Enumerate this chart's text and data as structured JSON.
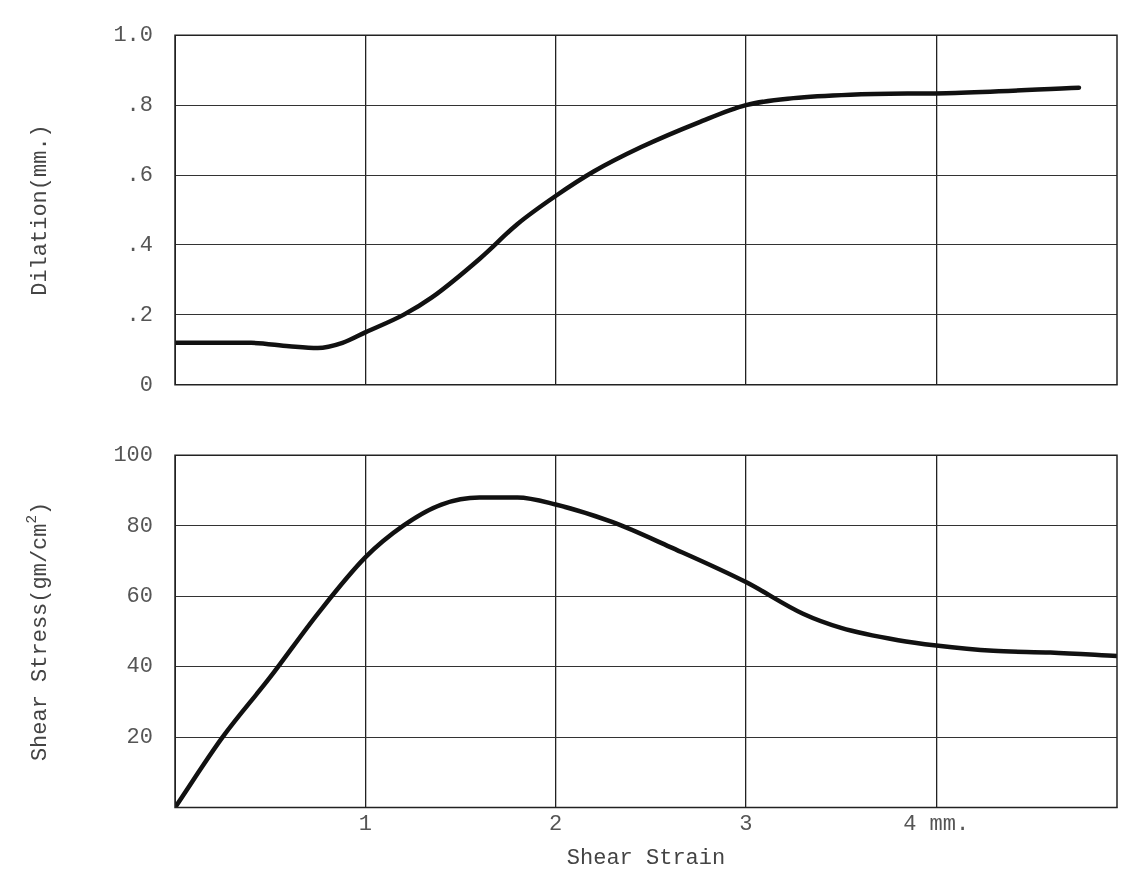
{
  "chart_data": [
    {
      "type": "line",
      "ylabel": "Dilation(mm.)",
      "x": [
        0,
        0.4,
        0.6,
        0.75,
        0.88,
        1.0,
        1.2,
        1.35,
        1.6,
        1.8,
        2.0,
        2.2,
        2.45,
        2.75,
        3.0,
        3.25,
        3.55,
        4.1,
        4.75
      ],
      "series": [
        {
          "color": "#111111",
          "values": [
            0.12,
            0.12,
            0.11,
            0.105,
            0.12,
            0.15,
            0.2,
            0.25,
            0.36,
            0.46,
            0.54,
            0.61,
            0.68,
            0.75,
            0.8,
            0.82,
            0.83,
            0.835,
            0.85
          ]
        }
      ],
      "xlim": [
        0,
        4.95
      ],
      "xticks": [
        1,
        2,
        3,
        4
      ],
      "ylim": [
        0,
        1.0
      ],
      "yticks": [
        {
          "value": 0,
          "label": "0"
        },
        {
          "value": 0.2,
          "label": ".2"
        },
        {
          "value": 0.4,
          "label": ".4"
        },
        {
          "value": 0.6,
          "label": ".6"
        },
        {
          "value": 0.8,
          "label": ".8"
        },
        {
          "value": 1.0,
          "label": "1.0"
        }
      ],
      "grid": true,
      "legend": false,
      "tick_labels": "y",
      "marker": "none",
      "line_style": "solid"
    },
    {
      "type": "line",
      "xlabel": "Shear Strain",
      "ylabel": "Shear Stress(gm/cm$^{2}$)",
      "x": [
        0,
        0.25,
        0.5,
        0.75,
        1.0,
        1.2,
        1.4,
        1.6,
        1.8,
        2.0,
        2.3,
        2.6,
        3.0,
        3.3,
        3.5,
        3.8,
        4.0,
        4.3,
        4.6,
        4.95
      ],
      "series": [
        {
          "color": "#111111",
          "values": [
            0,
            20,
            37,
            55,
            71,
            80,
            86,
            88,
            88,
            86,
            81,
            74,
            64,
            55,
            51,
            47.5,
            46,
            44.5,
            44,
            43
          ]
        }
      ],
      "xlim": [
        0,
        4.95
      ],
      "xticks": [
        1,
        2,
        3,
        {
          "value": 4,
          "label": "4 mm."
        }
      ],
      "ylim": [
        0,
        100
      ],
      "yticks": [
        20,
        40,
        60,
        80,
        100
      ],
      "grid": true,
      "legend": false,
      "marker": "none",
      "line_style": "solid"
    }
  ]
}
